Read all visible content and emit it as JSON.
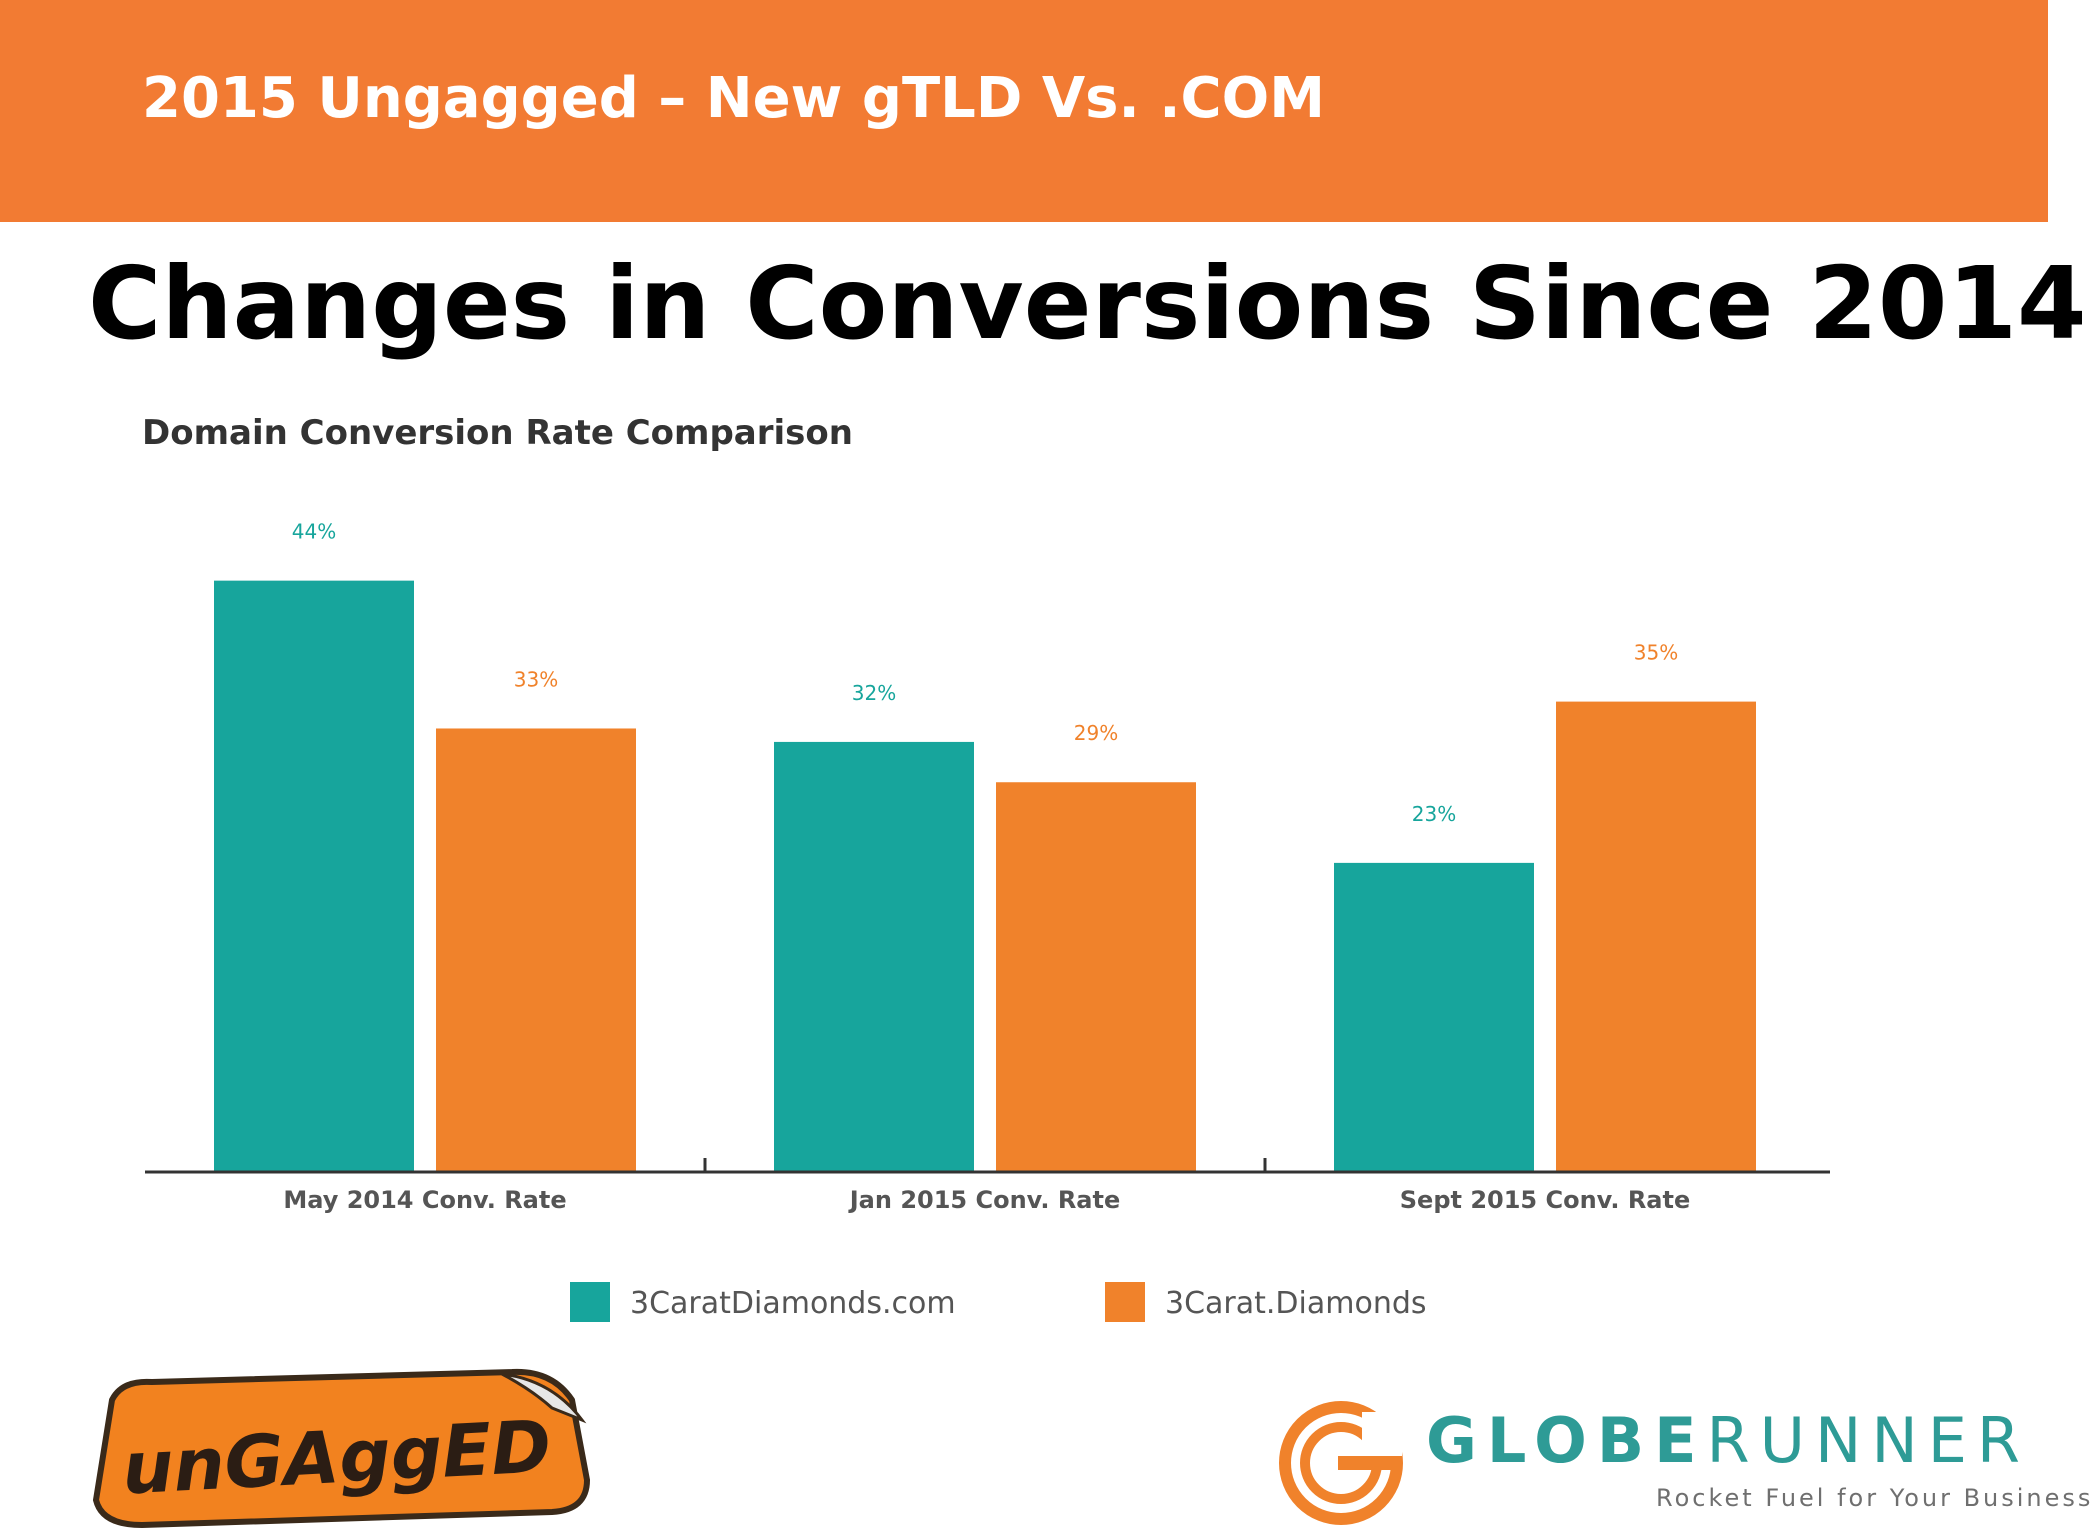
{
  "header": {
    "title": "2015 Ungagged – New gTLD Vs. .COM"
  },
  "slide": {
    "title": "Changes in Conversions Since 2014"
  },
  "colors": {
    "header_orange": "#f27b33",
    "teal": "#17a59c",
    "orange": "#f0822b"
  },
  "chart_data": {
    "type": "bar",
    "title": "Domain Conversion Rate Comparison",
    "categories": [
      "May 2014 Conv. Rate",
      "Jan 2015 Conv. Rate",
      "Sept 2015 Conv. Rate"
    ],
    "series": [
      {
        "name": "3CaratDiamonds.com",
        "values": [
          44,
          32,
          23
        ],
        "labels": [
          "44%",
          "32%",
          "23%"
        ],
        "color": "#17a59c"
      },
      {
        "name": "3Carat.Diamonds",
        "values": [
          33,
          29,
          35
        ],
        "labels": [
          "33%",
          "29%",
          "35%"
        ],
        "color": "#f0822b"
      }
    ],
    "ylim": [
      0,
      50
    ],
    "grid": false,
    "legend": "bottom"
  },
  "logos": {
    "ungagged": "unGAggED",
    "globerunner_a": "GLOBE",
    "globerunner_b": "RUNNER",
    "globerunner_tagline": "Rocket Fuel for Your Business"
  }
}
